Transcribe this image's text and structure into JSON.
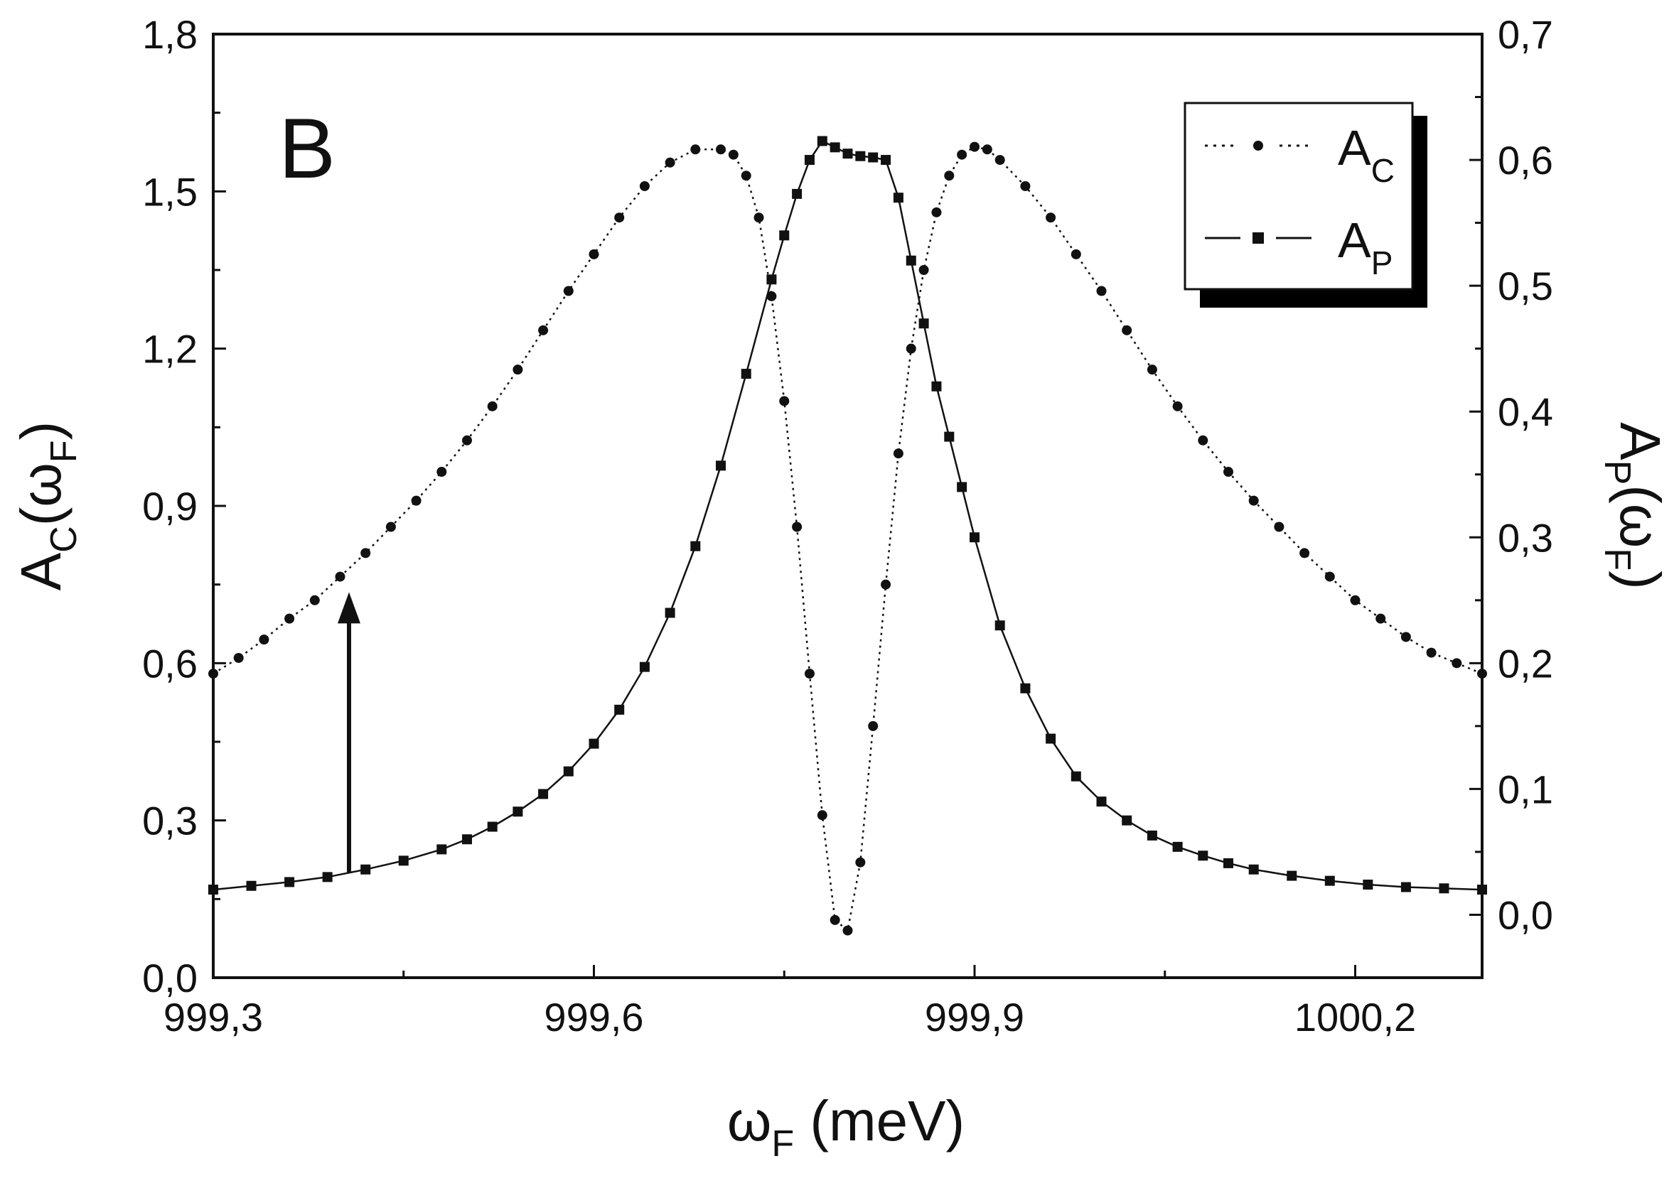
{
  "chart_data": {
    "type": "line",
    "panel_label": "B",
    "xlabel": {
      "symbol": "ω",
      "sub": "F",
      "rest": " (meV)"
    },
    "ylabel_left": {
      "base": "A",
      "sub": "C",
      "open": "(ω",
      "sub2": "F",
      "close": ")"
    },
    "ylabel_right": {
      "base": "A",
      "sub": "P",
      "open": "(ω",
      "sub2": "F",
      "close": ")"
    },
    "xlim": [
      999.3,
      1000.3
    ],
    "ylim_left": [
      0,
      1.8
    ],
    "ylim_right": [
      -0.05,
      0.7
    ],
    "x_ticks": [
      999.3,
      999.6,
      999.9,
      1000.2
    ],
    "x_tick_labels": [
      "999,3",
      "999,6",
      "999,9",
      "1000,2"
    ],
    "y_left_ticks": [
      0,
      0.3,
      0.6,
      0.9,
      1.2,
      1.5,
      1.8
    ],
    "y_left_tick_labels": [
      "0,0",
      "0,3",
      "0,6",
      "0,9",
      "1,2",
      "1,5",
      "1,8"
    ],
    "y_right_ticks": [
      0,
      0.1,
      0.2,
      0.3,
      0.4,
      0.5,
      0.6,
      0.7
    ],
    "y_right_tick_labels": [
      "0,0",
      "0,1",
      "0,2",
      "0,3",
      "0,4",
      "0,5",
      "0,6",
      "0,7"
    ],
    "legend": {
      "position": "top-right",
      "entries": [
        {
          "base": "A",
          "sub": "C",
          "style": "dotted line with circles"
        },
        {
          "base": "A",
          "sub": "P",
          "style": "dashed line with squares"
        }
      ]
    },
    "annotation": {
      "type": "arrow",
      "x": 999.407,
      "from_y_left": 0.2,
      "to_y_left": 0.73
    },
    "series": [
      {
        "name": "A_C",
        "axis": "left",
        "marker": "circle",
        "line": "dotted",
        "x": [
          999.3,
          999.32,
          999.34,
          999.36,
          999.38,
          999.4,
          999.42,
          999.44,
          999.46,
          999.48,
          999.5,
          999.52,
          999.54,
          999.56,
          999.58,
          999.6,
          999.62,
          999.64,
          999.66,
          999.68,
          999.7,
          999.71,
          999.72,
          999.73,
          999.74,
          999.75,
          999.76,
          999.77,
          999.78,
          999.79,
          999.8,
          999.81,
          999.82,
          999.83,
          999.84,
          999.85,
          999.86,
          999.87,
          999.88,
          999.89,
          999.9,
          999.91,
          999.92,
          999.94,
          999.96,
          999.98,
          1000.0,
          1000.02,
          1000.04,
          1000.06,
          1000.08,
          1000.1,
          1000.12,
          1000.14,
          1000.16,
          1000.18,
          1000.2,
          1000.22,
          1000.24,
          1000.26,
          1000.28,
          1000.3
        ],
        "values": [
          0.58,
          0.61,
          0.645,
          0.685,
          0.72,
          0.765,
          0.81,
          0.86,
          0.91,
          0.965,
          1.025,
          1.09,
          1.16,
          1.235,
          1.31,
          1.38,
          1.45,
          1.51,
          1.555,
          1.58,
          1.58,
          1.57,
          1.53,
          1.45,
          1.3,
          1.1,
          0.86,
          0.58,
          0.31,
          0.11,
          0.09,
          0.22,
          0.48,
          0.75,
          1.0,
          1.2,
          1.35,
          1.46,
          1.53,
          1.57,
          1.585,
          1.58,
          1.56,
          1.51,
          1.45,
          1.38,
          1.31,
          1.235,
          1.16,
          1.09,
          1.025,
          0.965,
          0.91,
          0.86,
          0.81,
          0.765,
          0.72,
          0.685,
          0.65,
          0.62,
          0.6,
          0.58
        ]
      },
      {
        "name": "A_P",
        "axis": "right",
        "marker": "square",
        "line": "dashed",
        "x": [
          999.3,
          999.33,
          999.36,
          999.39,
          999.42,
          999.45,
          999.48,
          999.5,
          999.52,
          999.54,
          999.56,
          999.58,
          999.6,
          999.62,
          999.64,
          999.66,
          999.68,
          999.7,
          999.72,
          999.74,
          999.75,
          999.76,
          999.77,
          999.78,
          999.79,
          999.8,
          999.81,
          999.82,
          999.83,
          999.84,
          999.85,
          999.86,
          999.87,
          999.88,
          999.89,
          999.9,
          999.92,
          999.94,
          999.96,
          999.98,
          1000.0,
          1000.02,
          1000.04,
          1000.06,
          1000.08,
          1000.1,
          1000.12,
          1000.15,
          1000.18,
          1000.21,
          1000.24,
          1000.27,
          1000.3
        ],
        "values": [
          0.02,
          0.023,
          0.026,
          0.03,
          0.036,
          0.043,
          0.052,
          0.06,
          0.07,
          0.082,
          0.096,
          0.114,
          0.136,
          0.163,
          0.197,
          0.24,
          0.293,
          0.357,
          0.43,
          0.505,
          0.54,
          0.573,
          0.6,
          0.615,
          0.61,
          0.605,
          0.603,
          0.602,
          0.6,
          0.57,
          0.52,
          0.47,
          0.42,
          0.38,
          0.34,
          0.3,
          0.23,
          0.18,
          0.14,
          0.11,
          0.09,
          0.075,
          0.063,
          0.054,
          0.047,
          0.041,
          0.036,
          0.031,
          0.027,
          0.024,
          0.022,
          0.021,
          0.02
        ]
      }
    ]
  }
}
